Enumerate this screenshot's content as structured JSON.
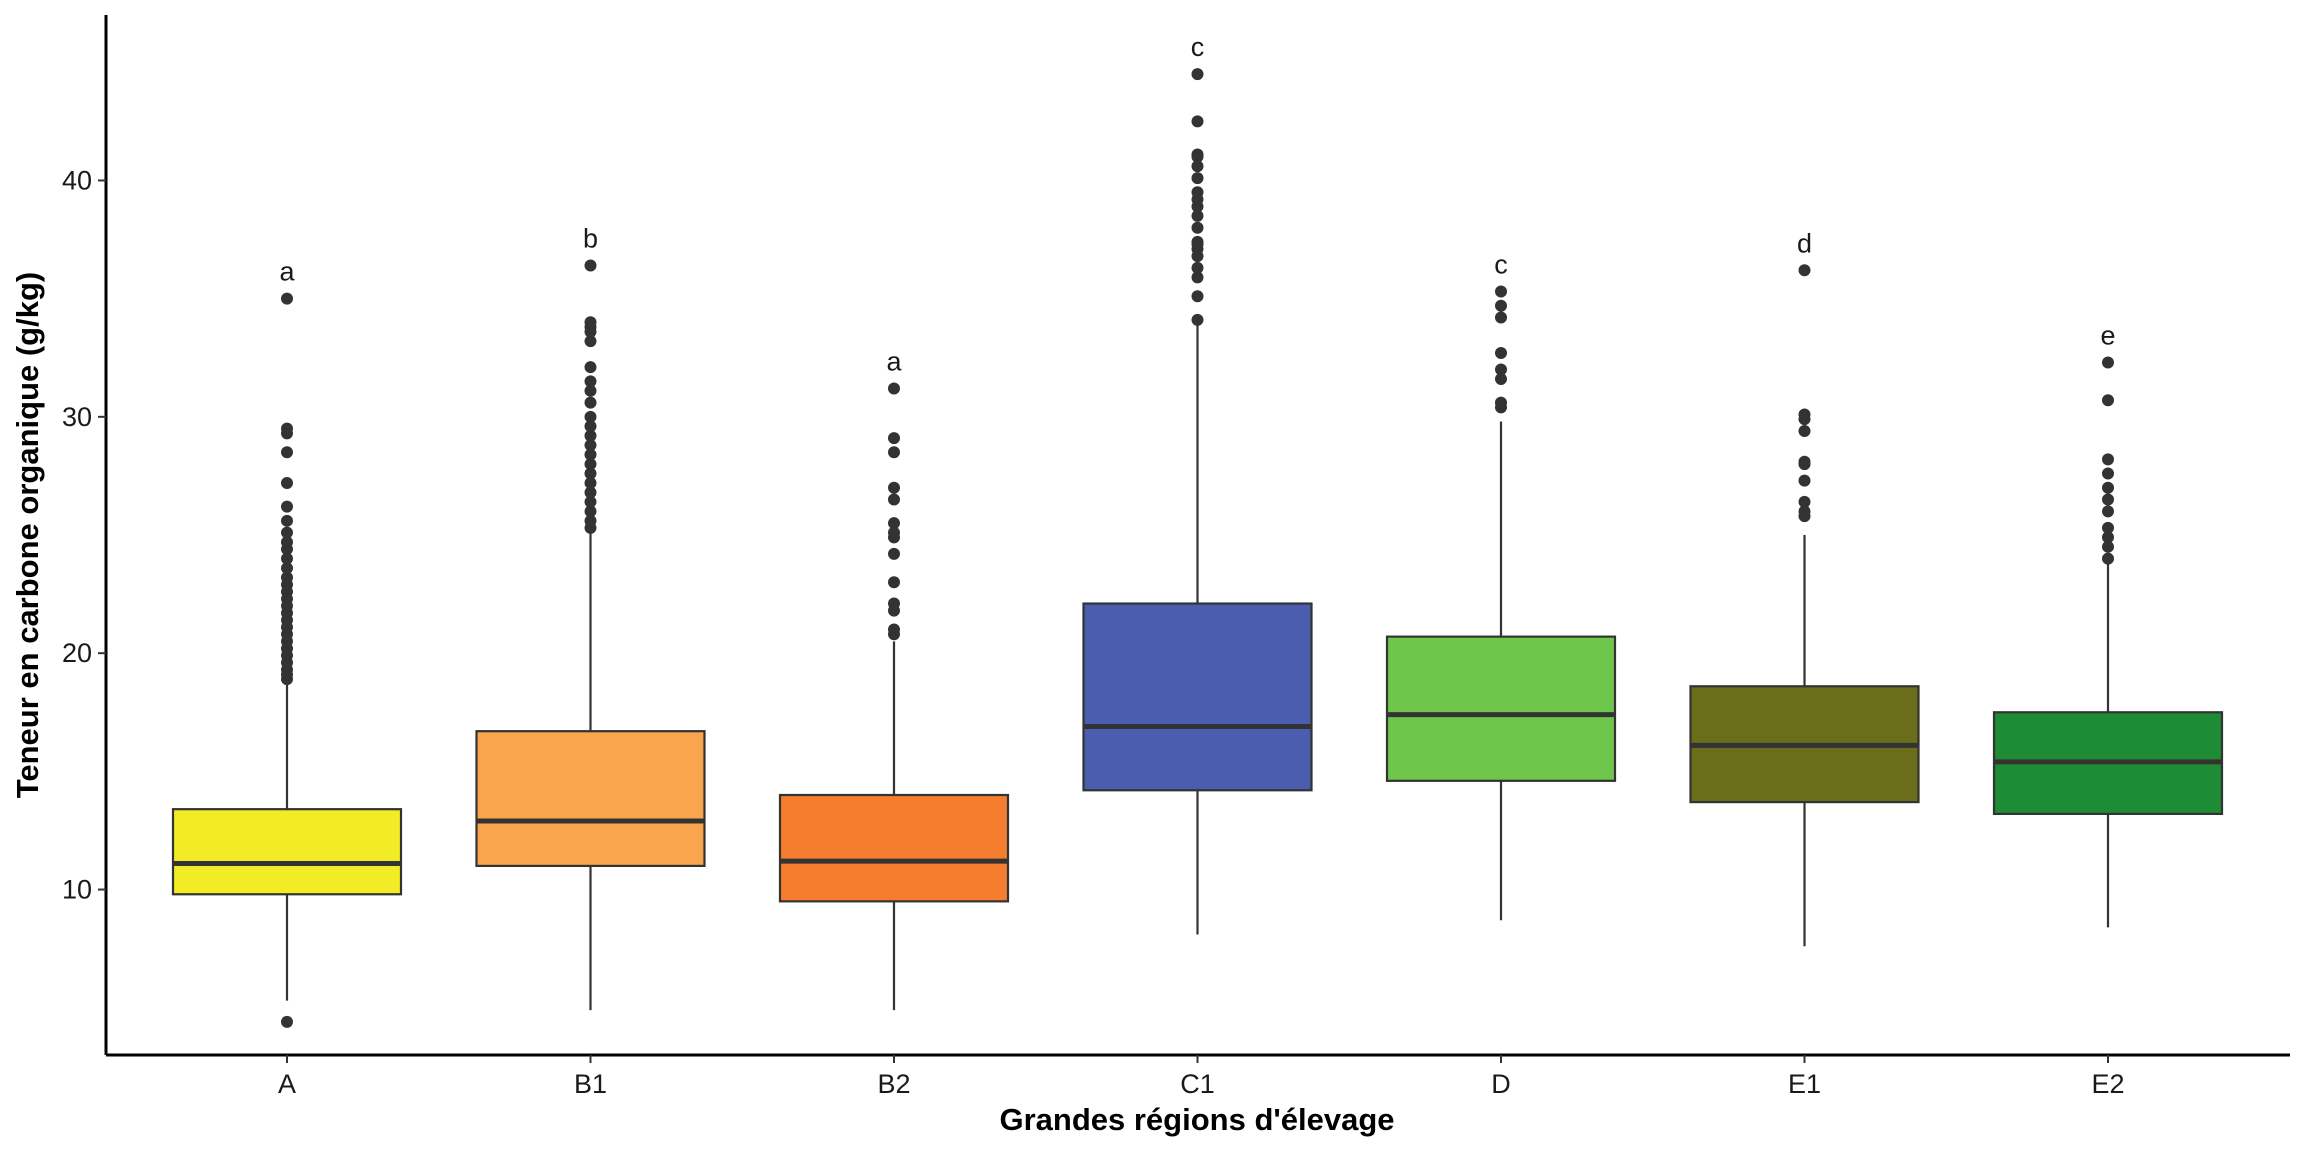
{
  "chart_data": {
    "type": "boxplot",
    "title": "",
    "xlabel": "Grandes régions d'élevage",
    "ylabel": "Teneur en carbone organique (g/kg)",
    "ylim": [
      3.0,
      47.0
    ],
    "yticks": [
      10,
      20,
      30,
      40
    ],
    "grid": false,
    "legend": "none",
    "categories": [
      "A",
      "B1",
      "B2",
      "C1",
      "D",
      "E1",
      "E2"
    ],
    "boxes": [
      {
        "category": "A",
        "color": "#F2EC26",
        "significance": "a",
        "whisker_low": 5.3,
        "q1": 9.8,
        "median": 11.1,
        "q3": 13.4,
        "whisker_high": 18.8,
        "outliers": [
          4.4,
          18.9,
          19.1,
          19.3,
          19.6,
          19.9,
          20.2,
          20.5,
          20.8,
          21.1,
          21.4,
          21.7,
          22.0,
          22.3,
          22.6,
          22.9,
          23.2,
          23.6,
          24.0,
          24.4,
          24.7,
          25.1,
          25.6,
          26.2,
          27.2,
          28.5,
          29.3,
          29.5,
          35.0
        ]
      },
      {
        "category": "B1",
        "color": "#F8A54D",
        "significance": "b",
        "whisker_low": 4.9,
        "q1": 11.0,
        "median": 12.9,
        "q3": 16.7,
        "whisker_high": 25.2,
        "outliers": [
          25.3,
          25.6,
          26.0,
          26.4,
          26.8,
          27.2,
          27.6,
          28.0,
          28.4,
          28.8,
          29.2,
          29.6,
          30.0,
          30.6,
          31.1,
          31.5,
          32.1,
          33.2,
          33.6,
          33.8,
          34.0,
          36.4
        ]
      },
      {
        "category": "B2",
        "color": "#F47D2E",
        "significance": "a",
        "whisker_low": 4.9,
        "q1": 9.5,
        "median": 11.2,
        "q3": 14.0,
        "whisker_high": 20.5,
        "outliers": [
          20.8,
          21.0,
          21.8,
          22.1,
          23.0,
          24.2,
          24.9,
          25.1,
          25.5,
          26.5,
          27.0,
          28.5,
          29.1,
          31.2
        ]
      },
      {
        "category": "C1",
        "color": "#4A5DAF",
        "significance": "c",
        "whisker_low": 8.1,
        "q1": 14.2,
        "median": 16.9,
        "q3": 22.1,
        "whisker_high": 34.0,
        "outliers": [
          34.1,
          35.1,
          35.9,
          36.3,
          36.8,
          37.1,
          37.3,
          37.4,
          38.0,
          38.5,
          38.9,
          39.2,
          39.5,
          40.1,
          40.6,
          41.0,
          41.1,
          42.5,
          44.5
        ]
      },
      {
        "category": "D",
        "color": "#6EC74A",
        "significance": "c",
        "whisker_low": 8.7,
        "q1": 14.6,
        "median": 17.4,
        "q3": 20.7,
        "whisker_high": 29.8,
        "outliers": [
          30.4,
          30.6,
          31.6,
          32.0,
          32.7,
          34.2,
          34.7,
          35.3
        ]
      },
      {
        "category": "E1",
        "color": "#6A6E1A",
        "significance": "d",
        "whisker_low": 7.6,
        "q1": 13.7,
        "median": 16.1,
        "q3": 18.6,
        "whisker_high": 25.0,
        "outliers": [
          25.8,
          26.0,
          26.4,
          27.3,
          28.0,
          28.1,
          29.4,
          29.9,
          30.1,
          36.2
        ]
      },
      {
        "category": "E2",
        "color": "#1E8C35",
        "significance": "e",
        "whisker_low": 8.4,
        "q1": 13.2,
        "median": 15.4,
        "q3": 17.5,
        "whisker_high": 23.9,
        "outliers": [
          24.0,
          24.5,
          24.9,
          25.3,
          26.0,
          26.5,
          27.0,
          27.6,
          28.2,
          30.7,
          32.3
        ]
      }
    ]
  }
}
